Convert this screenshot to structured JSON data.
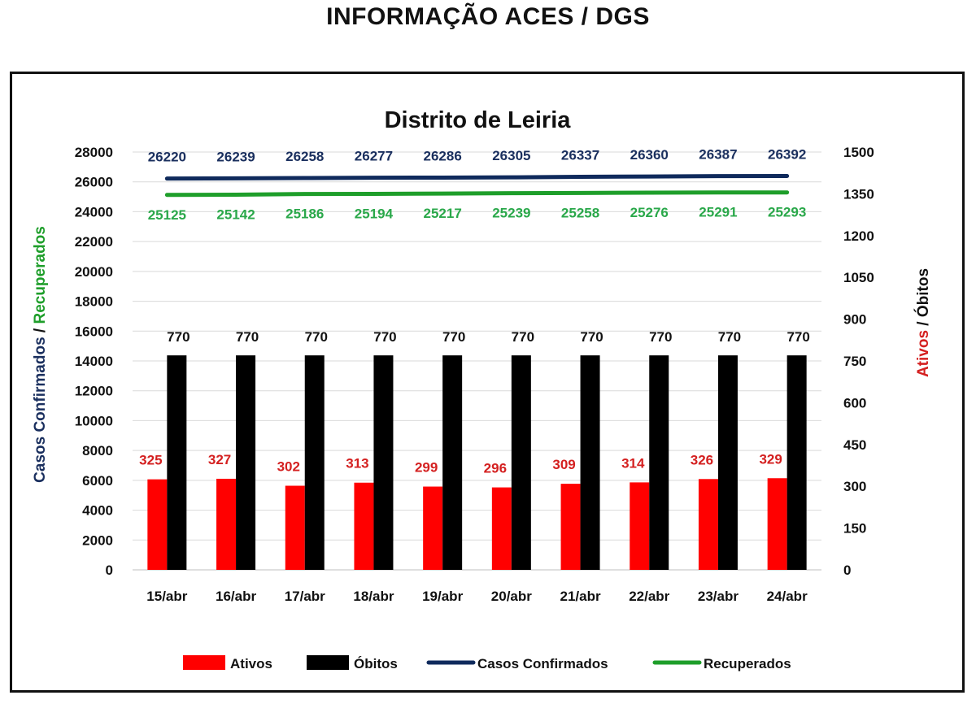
{
  "page_title": "INFORMAÇÃO ACES / DGS",
  "chart_data": {
    "type": "bar",
    "title": "Distrito de Leiria",
    "categories": [
      "15/abr",
      "16/abr",
      "17/abr",
      "18/abr",
      "19/abr",
      "20/abr",
      "21/abr",
      "22/abr",
      "23/abr",
      "24/abr"
    ],
    "left_axis": {
      "label_part1": "Casos Confirmados",
      "label_sep": " / ",
      "label_part2": "Recuperados",
      "ylim": [
        0,
        28000
      ],
      "ticks": [
        0,
        2000,
        4000,
        6000,
        8000,
        10000,
        12000,
        14000,
        16000,
        18000,
        20000,
        22000,
        24000,
        26000,
        28000
      ]
    },
    "right_axis": {
      "label_part1": "Ativos",
      "label_sep": " / ",
      "label_part2": "Óbitos",
      "ylim": [
        0,
        1500
      ],
      "ticks": [
        0,
        150,
        300,
        450,
        600,
        750,
        900,
        1050,
        1200,
        1350,
        1500
      ]
    },
    "series": [
      {
        "name": "Ativos",
        "type": "bar",
        "axis": "right",
        "color": "#ff0000",
        "values": [
          325,
          327,
          302,
          313,
          299,
          296,
          309,
          314,
          326,
          329
        ]
      },
      {
        "name": "Óbitos",
        "type": "bar",
        "axis": "right",
        "color": "#000000",
        "values": [
          770,
          770,
          770,
          770,
          770,
          770,
          770,
          770,
          770,
          770
        ]
      },
      {
        "name": "Casos Confirmados",
        "type": "line",
        "axis": "left",
        "color": "#0f2a5c",
        "values": [
          26220,
          26239,
          26258,
          26277,
          26286,
          26305,
          26337,
          26360,
          26387,
          26392
        ]
      },
      {
        "name": "Recuperados",
        "type": "line",
        "axis": "left",
        "color": "#1e9e2a",
        "values": [
          25125,
          25142,
          25186,
          25194,
          25217,
          25239,
          25258,
          25276,
          25291,
          25293
        ]
      }
    ],
    "label_colors": {
      "Ativos": "#d42020",
      "Óbitos": "#111111",
      "Casos Confirmados": "#1a2f5e",
      "Recuperados": "#2aa84a"
    },
    "axis_label_colors": {
      "Casos Confirmados": "#1a2f5e",
      "Recuperados": "#1e9e2a",
      "Ativos": "#d42020",
      "Óbitos": "#111111"
    },
    "grid": true,
    "legend_position": "bottom"
  }
}
